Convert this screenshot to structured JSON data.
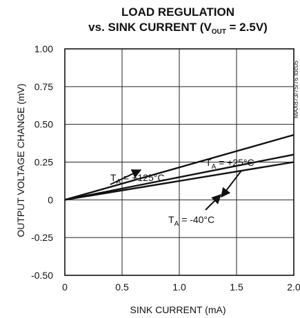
{
  "chart_data": {
    "type": "line",
    "title_line1": "LOAD REGULATION",
    "title_line2_prefix": "vs. SINK CURRENT (V",
    "title_line2_sub": "OUT",
    "title_line2_suffix": " = 2.5V)",
    "xlabel": "SINK CURRENT (mA)",
    "ylabel": "OUTPUT VOLTAGE CHANGE (mV)",
    "side_code": "MAX873/75/76 toc05",
    "xlim": [
      0,
      2.0
    ],
    "ylim": [
      -0.5,
      1.0
    ],
    "x_ticks": [
      "0",
      "0.5",
      "1.0",
      "1.5",
      "2.0"
    ],
    "x_tick_values": [
      0,
      0.5,
      1.0,
      1.5,
      2.0
    ],
    "y_ticks": [
      "1.00",
      "0.75",
      "0.50",
      "0.25",
      "0",
      "-0.25",
      "-0.50"
    ],
    "y_tick_values": [
      1.0,
      0.75,
      0.5,
      0.25,
      0,
      -0.25,
      -0.5
    ],
    "grid": true,
    "series": [
      {
        "name": "TA = +125°C",
        "x": [
          0,
          2.0
        ],
        "y": [
          0,
          0.43
        ]
      },
      {
        "name": "TA = +25°C",
        "x": [
          0,
          2.0
        ],
        "y": [
          0,
          0.3
        ]
      },
      {
        "name": "TA = -40°C",
        "x": [
          0,
          2.0
        ],
        "y": [
          0,
          0.25
        ]
      }
    ],
    "annotations": [
      {
        "prefix": "T",
        "sub": "A",
        "suffix": " = +125°C"
      },
      {
        "prefix": "T",
        "sub": "A",
        "suffix": " = +25°C"
      },
      {
        "prefix": "T",
        "sub": "A",
        "suffix": " = -40°C"
      }
    ]
  }
}
